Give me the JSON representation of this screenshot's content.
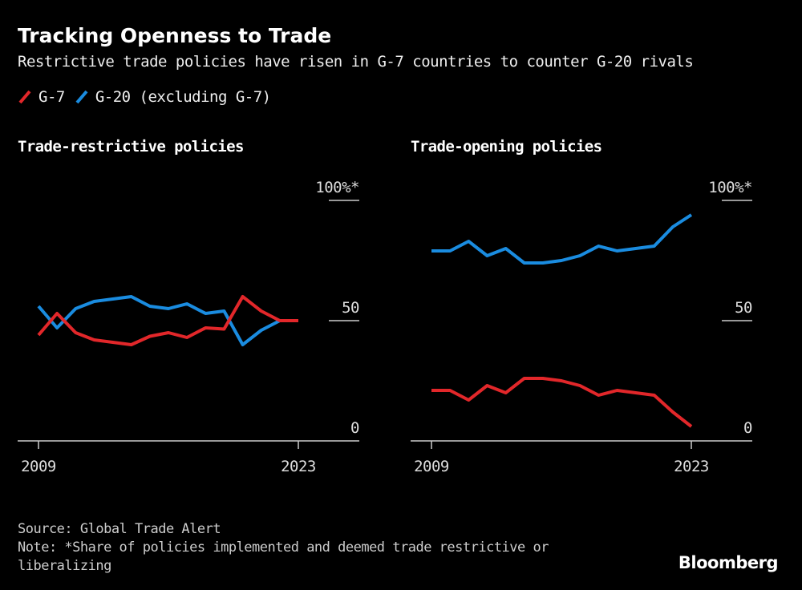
{
  "title": "Tracking Openness to Trade",
  "subtitle": "Restrictive trade policies have risen in G-7 countries to counter G-20 rivals",
  "legend": [
    {
      "name": "G-7",
      "color": "#e2272a"
    },
    {
      "name": "G-20 (excluding G-7)",
      "color": "#1a8ce0"
    }
  ],
  "source": "Source: Global Trade Alert",
  "note_line1": "Note: *Share of policies implemented and deemed trade restrictive or",
  "note_line2": "liberalizing",
  "logo": "Bloomberg",
  "chart_data": [
    {
      "type": "line",
      "title": "Trade-restrictive policies",
      "x": [
        2009,
        2010,
        2011,
        2012,
        2013,
        2014,
        2015,
        2016,
        2017,
        2018,
        2019,
        2020,
        2021,
        2022,
        2023
      ],
      "x_tick_labels": [
        "2009",
        "2023"
      ],
      "y_tick_labels": [
        "0",
        "50",
        "100%*"
      ],
      "ylim": [
        0,
        100
      ],
      "y_axis_position": "right",
      "series": [
        {
          "name": "G-7",
          "color": "#e2272a",
          "values": [
            44,
            53,
            45,
            42,
            41,
            40,
            43.5,
            45,
            43,
            47,
            46.5,
            60,
            54,
            50,
            50
          ]
        },
        {
          "name": "G-20 (excluding G-7)",
          "color": "#1a8ce0",
          "values": [
            56,
            47,
            55,
            58,
            59,
            60,
            56,
            55,
            57,
            53,
            54,
            40,
            46,
            50,
            50
          ]
        }
      ]
    },
    {
      "type": "line",
      "title": "Trade-opening policies",
      "x": [
        2009,
        2010,
        2011,
        2012,
        2013,
        2014,
        2015,
        2016,
        2017,
        2018,
        2019,
        2020,
        2021,
        2022,
        2023
      ],
      "x_tick_labels": [
        "2009",
        "2023"
      ],
      "y_tick_labels": [
        "0",
        "50",
        "100%*"
      ],
      "ylim": [
        0,
        100
      ],
      "y_axis_position": "right",
      "series": [
        {
          "name": "G-7",
          "color": "#e2272a",
          "values": [
            21,
            21,
            17,
            23,
            20,
            26,
            26,
            25,
            23,
            19,
            21,
            20,
            19,
            12,
            6
          ]
        },
        {
          "name": "G-20 (excluding G-7)",
          "color": "#1a8ce0",
          "values": [
            79,
            79,
            83,
            77,
            80,
            74,
            74,
            75,
            77,
            81,
            79,
            80,
            81,
            89,
            94
          ]
        }
      ]
    }
  ]
}
